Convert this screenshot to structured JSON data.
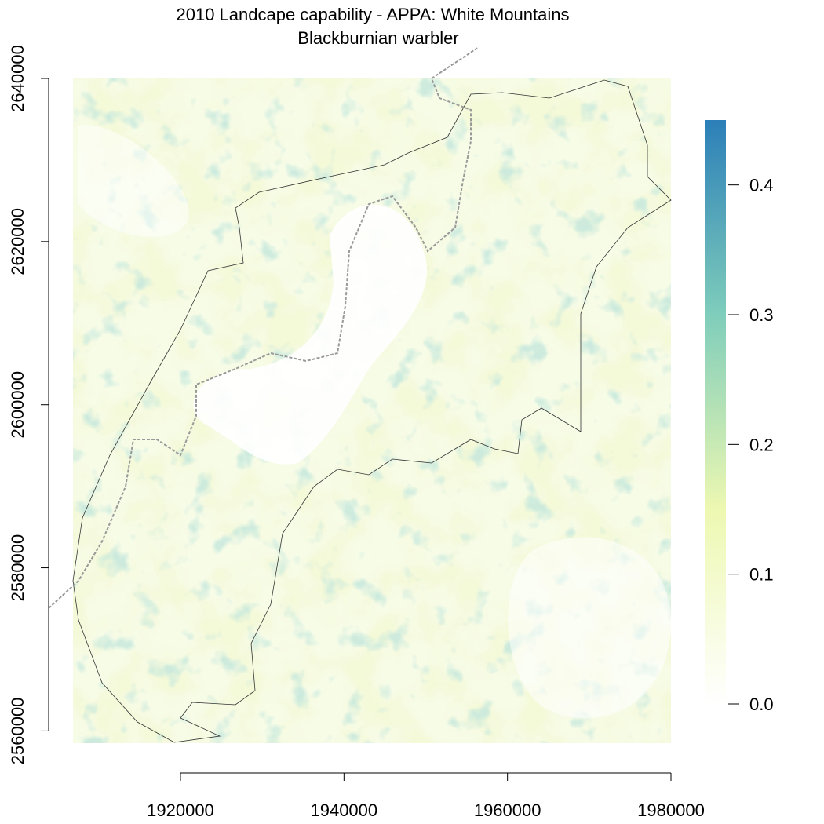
{
  "chart_data": {
    "type": "raster",
    "title": "2010 Landcape capability - APPA: White Mountains",
    "subtitle": "Blackburnian warbler",
    "xlim": [
      1906850,
      1980000
    ],
    "ylim": [
      2558500,
      2640000
    ],
    "xticks": [
      1920000,
      1940000,
      1960000,
      1980000
    ],
    "yticks": [
      2560000,
      2580000,
      2600000,
      2620000,
      2640000
    ],
    "colorbar": {
      "lim": [
        0,
        0.45
      ],
      "ticks": [
        {
          "value": 0,
          "label": "0.0"
        },
        0.1,
        0.2,
        0.3,
        0.4
      ],
      "colors": [
        "#ffffff",
        "#edf8b1",
        "#7fcdbb",
        "#2c7fb8"
      ]
    }
  }
}
